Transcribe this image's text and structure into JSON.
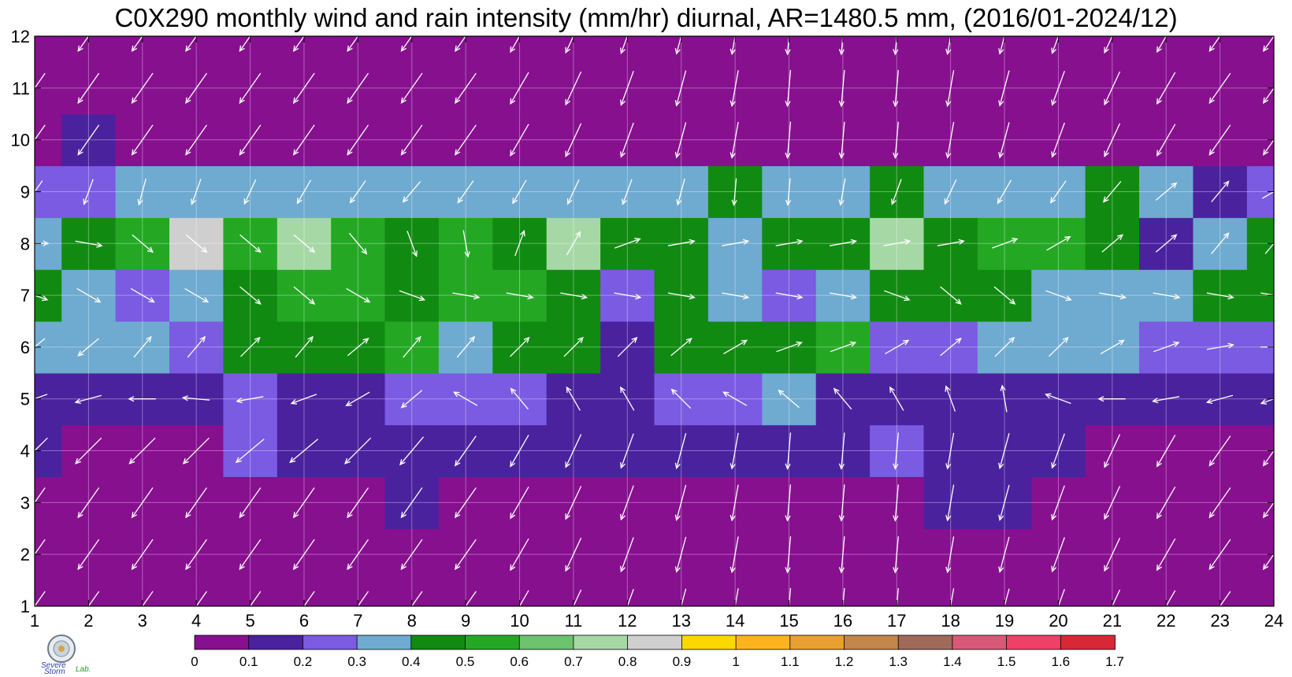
{
  "chart_data": {
    "type": "heatmap",
    "title": "C0X290 monthly wind and rain intensity (mm/hr) diurnal, AR=1480.5 mm, (2016/01-2024/12)",
    "xlabel": "",
    "ylabel": "",
    "x_ticks": [
      1,
      2,
      3,
      4,
      5,
      6,
      7,
      8,
      9,
      10,
      11,
      12,
      13,
      14,
      15,
      16,
      17,
      18,
      19,
      20,
      21,
      22,
      23,
      24
    ],
    "y_ticks": [
      1,
      2,
      3,
      4,
      5,
      6,
      7,
      8,
      9,
      10,
      11,
      12
    ],
    "xlim": [
      1,
      24
    ],
    "ylim": [
      1,
      12
    ],
    "colorbar": {
      "levels": [
        "0",
        "0.1",
        "0.2",
        "0.3",
        "0.4",
        "0.5",
        "0.6",
        "0.7",
        "0.8",
        "0.9",
        "1",
        "1.1",
        "1.2",
        "1.3",
        "1.4",
        "1.5",
        "1.6",
        "1.7"
      ],
      "colors": [
        "#87108f",
        "#4a229e",
        "#7a5be2",
        "#6faad0",
        "#118a11",
        "#24a824",
        "#6dc26d",
        "#a6d8a6",
        "#cfcfcf",
        "#fcd800",
        "#fcb41e",
        "#e8a030",
        "#c2864a",
        "#a06a5a",
        "#d85878",
        "#f04068",
        "#d82838"
      ]
    },
    "rain_rows_month_1_to_12": [
      [
        0.05,
        0.05,
        0.05,
        0.05,
        0.05,
        0.05,
        0.05,
        0.05,
        0.05,
        0.05,
        0.05,
        0.05,
        0.05,
        0.05,
        0.05,
        0.05,
        0.05,
        0.05,
        0.05,
        0.05,
        0.05,
        0.05,
        0.05,
        0.05
      ],
      [
        0.05,
        0.05,
        0.05,
        0.05,
        0.05,
        0.05,
        0.05,
        0.05,
        0.05,
        0.05,
        0.05,
        0.05,
        0.05,
        0.05,
        0.05,
        0.05,
        0.05,
        0.05,
        0.05,
        0.05,
        0.05,
        0.05,
        0.05,
        0.05
      ],
      [
        0.05,
        0.05,
        0.05,
        0.05,
        0.05,
        0.05,
        0.05,
        0.15,
        0.05,
        0.05,
        0.05,
        0.05,
        0.05,
        0.05,
        0.05,
        0.05,
        0.05,
        0.15,
        0.15,
        0.05,
        0.05,
        0.05,
        0.05,
        0.05
      ],
      [
        0.12,
        0.09,
        0.08,
        0.08,
        0.22,
        0.15,
        0.12,
        0.15,
        0.12,
        0.15,
        0.15,
        0.15,
        0.15,
        0.15,
        0.15,
        0.12,
        0.25,
        0.15,
        0.15,
        0.12,
        0.05,
        0.05,
        0.05,
        0.05
      ],
      [
        0.15,
        0.15,
        0.15,
        0.15,
        0.25,
        0.15,
        0.15,
        0.25,
        0.25,
        0.25,
        0.15,
        0.15,
        0.25,
        0.25,
        0.35,
        0.15,
        0.15,
        0.15,
        0.15,
        0.12,
        0.12,
        0.12,
        0.12,
        0.15
      ],
      [
        0.35,
        0.35,
        0.35,
        0.25,
        0.45,
        0.45,
        0.45,
        0.55,
        0.35,
        0.45,
        0.45,
        0.15,
        0.45,
        0.45,
        0.45,
        0.55,
        0.25,
        0.25,
        0.35,
        0.35,
        0.35,
        0.25,
        0.25,
        0.25
      ],
      [
        0.45,
        0.35,
        0.25,
        0.35,
        0.45,
        0.55,
        0.55,
        0.45,
        0.55,
        0.55,
        0.45,
        0.25,
        0.45,
        0.35,
        0.25,
        0.35,
        0.45,
        0.45,
        0.45,
        0.35,
        0.35,
        0.35,
        0.45,
        0.45
      ],
      [
        0.35,
        0.45,
        0.55,
        0.85,
        0.55,
        0.75,
        0.55,
        0.45,
        0.55,
        0.45,
        0.75,
        0.45,
        0.45,
        0.35,
        0.45,
        0.45,
        0.75,
        0.45,
        0.55,
        0.55,
        0.45,
        0.15,
        0.35,
        0.45
      ],
      [
        0.25,
        0.25,
        0.35,
        0.35,
        0.35,
        0.35,
        0.35,
        0.35,
        0.35,
        0.35,
        0.35,
        0.35,
        0.35,
        0.45,
        0.35,
        0.35,
        0.45,
        0.35,
        0.35,
        0.35,
        0.45,
        0.35,
        0.15,
        0.25
      ],
      [
        0.05,
        0.15,
        0.05,
        0.05,
        0.05,
        0.05,
        0.05,
        0.05,
        0.05,
        0.05,
        0.05,
        0.05,
        0.05,
        0.05,
        0.05,
        0.05,
        0.05,
        0.05,
        0.05,
        0.05,
        0.05,
        0.05,
        0.05,
        0.05
      ],
      [
        0.05,
        0.05,
        0.05,
        0.05,
        0.05,
        0.05,
        0.05,
        0.05,
        0.05,
        0.05,
        0.05,
        0.05,
        0.05,
        0.05,
        0.05,
        0.05,
        0.05,
        0.05,
        0.05,
        0.05,
        0.05,
        0.05,
        0.05,
        0.05
      ],
      [
        0.05,
        0.05,
        0.05,
        0.05,
        0.05,
        0.05,
        0.05,
        0.05,
        0.05,
        0.05,
        0.05,
        0.05,
        0.05,
        0.05,
        0.05,
        0.05,
        0.05,
        0.05,
        0.05,
        0.05,
        0.05,
        0.05,
        0.05,
        0.05
      ]
    ],
    "wind_vectors_note": "",
    "wind_rows_month_1_to_12_direction_deg_to": [
      [
        215,
        215,
        215,
        215,
        215,
        215,
        215,
        215,
        215,
        210,
        205,
        200,
        195,
        190,
        185,
        185,
        185,
        190,
        195,
        200,
        205,
        210,
        215,
        215
      ],
      [
        215,
        215,
        215,
        215,
        215,
        215,
        215,
        215,
        215,
        210,
        205,
        200,
        195,
        190,
        185,
        185,
        185,
        190,
        195,
        200,
        205,
        210,
        215,
        215
      ],
      [
        215,
        215,
        215,
        215,
        215,
        215,
        215,
        215,
        215,
        210,
        205,
        200,
        195,
        190,
        185,
        185,
        185,
        190,
        195,
        200,
        205,
        210,
        215,
        215
      ],
      [
        225,
        225,
        225,
        225,
        230,
        230,
        225,
        220,
        215,
        210,
        205,
        200,
        195,
        190,
        185,
        185,
        185,
        190,
        195,
        200,
        205,
        210,
        215,
        215
      ],
      [
        250,
        255,
        270,
        275,
        260,
        250,
        240,
        230,
        300,
        320,
        330,
        330,
        315,
        300,
        310,
        320,
        330,
        340,
        350,
        290,
        270,
        260,
        255,
        250
      ],
      [
        230,
        230,
        40,
        40,
        45,
        40,
        50,
        40,
        40,
        45,
        45,
        45,
        50,
        60,
        70,
        70,
        60,
        50,
        45,
        45,
        60,
        70,
        80,
        90
      ],
      [
        110,
        120,
        120,
        120,
        130,
        130,
        120,
        110,
        100,
        100,
        100,
        100,
        100,
        100,
        100,
        100,
        110,
        130,
        130,
        110,
        100,
        100,
        100,
        100
      ],
      [
        90,
        100,
        130,
        130,
        130,
        130,
        140,
        160,
        170,
        20,
        30,
        70,
        80,
        80,
        80,
        80,
        80,
        80,
        70,
        60,
        50,
        50,
        40,
        40
      ],
      [
        215,
        200,
        195,
        200,
        205,
        210,
        215,
        220,
        215,
        210,
        205,
        200,
        195,
        185,
        185,
        190,
        200,
        205,
        210,
        215,
        220,
        50,
        40,
        60
      ],
      [
        215,
        215,
        215,
        215,
        215,
        215,
        215,
        215,
        215,
        210,
        205,
        200,
        195,
        190,
        185,
        185,
        185,
        190,
        195,
        200,
        205,
        210,
        215,
        215
      ],
      [
        215,
        215,
        215,
        215,
        215,
        215,
        215,
        215,
        215,
        210,
        205,
        200,
        195,
        190,
        185,
        185,
        185,
        190,
        195,
        200,
        205,
        210,
        215,
        215
      ],
      [
        215,
        215,
        215,
        215,
        215,
        215,
        215,
        215,
        215,
        210,
        205,
        200,
        195,
        190,
        185,
        185,
        185,
        190,
        195,
        200,
        205,
        210,
        215,
        215
      ]
    ],
    "grid": true
  },
  "logo": {
    "lab_text": "Lab.",
    "severe_text": "Severe",
    "storm_text": "Storm"
  }
}
